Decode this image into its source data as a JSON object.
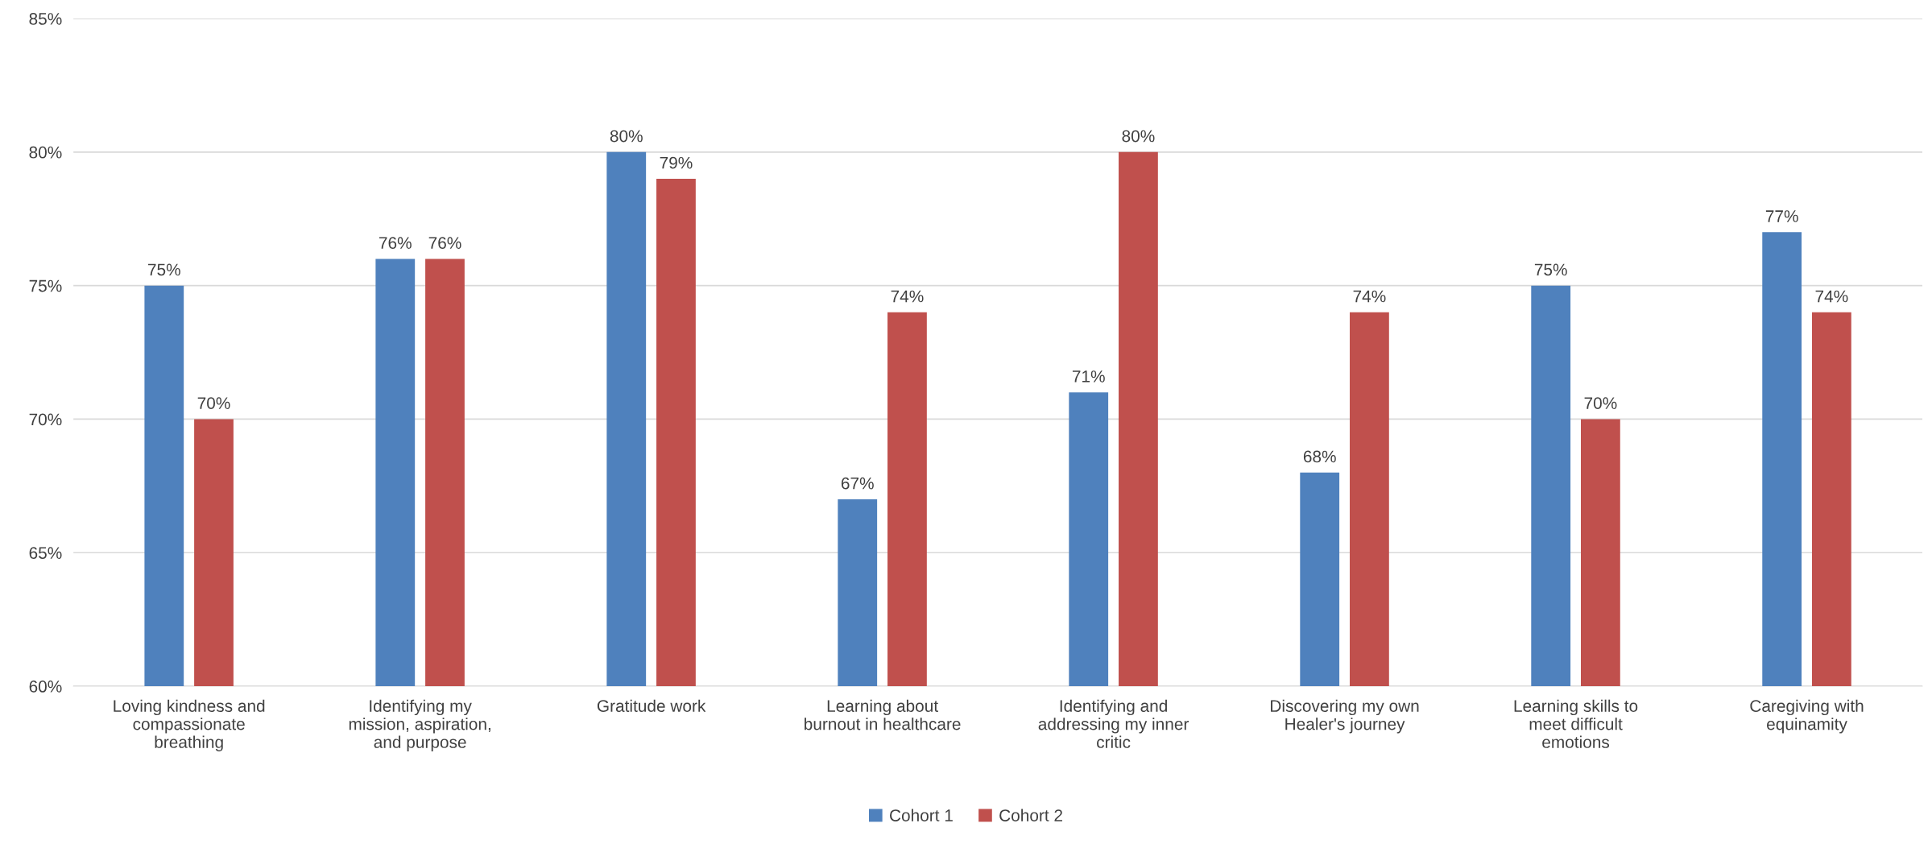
{
  "chart_data": {
    "type": "bar",
    "categories": [
      "Loving kindness and compassionate breathing",
      "Identifying my mission, aspiration, and purpose",
      "Gratitude work",
      "Learning about burnout in healthcare",
      "Identifying and addressing my inner critic",
      "Discovering my own Healer's journey",
      "Learning skills to meet difficult emotions",
      "Caregiving with equinamity"
    ],
    "series": [
      {
        "name": "Cohort 1",
        "color": "#4f81bd",
        "values": [
          75,
          76,
          80,
          67,
          71,
          68,
          75,
          77
        ],
        "value_labels": [
          "75%",
          "76%",
          "80%",
          "67%",
          "71%",
          "68%",
          "75%",
          "77%"
        ]
      },
      {
        "name": "Cohort 2",
        "color": "#c0504d",
        "values": [
          70,
          76,
          79,
          74,
          80,
          74,
          70,
          74
        ],
        "value_labels": [
          "70%",
          "76%",
          "79%",
          "74%",
          "80%",
          "74%",
          "70%",
          "74%"
        ]
      }
    ],
    "ylim": [
      60,
      85
    ],
    "yticks": [
      {
        "value": 60,
        "label": "60%"
      },
      {
        "value": 65,
        "label": "65%"
      },
      {
        "value": 70,
        "label": "70%"
      },
      {
        "value": 75,
        "label": "75%"
      },
      {
        "value": 80,
        "label": "80%"
      },
      {
        "value": 85,
        "label": "85%"
      }
    ],
    "grid": "y",
    "legend": "bottom"
  }
}
